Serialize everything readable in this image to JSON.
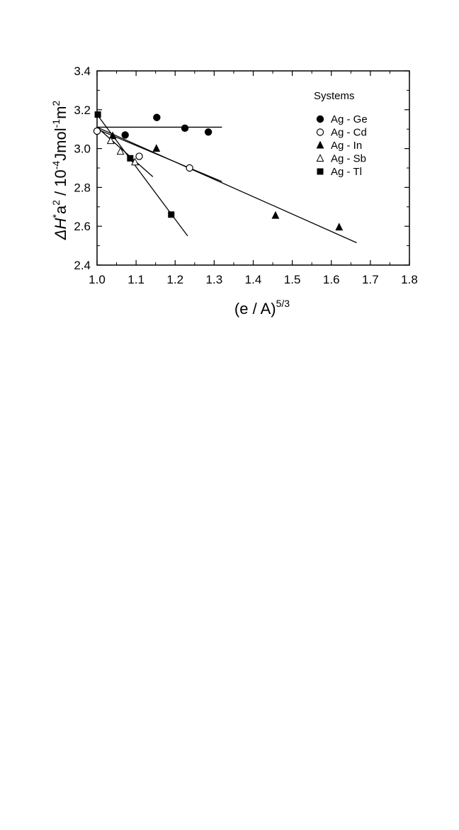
{
  "chart_data": {
    "type": "scatter",
    "title": "",
    "xlabel": "(e / A)",
    "xlabel_sup": "5/3",
    "ylabel_parts": {
      "delta": "Δ",
      "h": "H",
      "star": "*",
      "a": "a",
      "a_sup": "2",
      "sep": " / 10",
      "exp": "-4",
      "unit1": "Jmol",
      "unit1_sup": "-1",
      "unit2": "m",
      "unit2_sup": "2"
    },
    "xlim": [
      1.0,
      1.8
    ],
    "ylim": [
      2.4,
      3.4
    ],
    "x_ticks": [
      "1.0",
      "1.1",
      "1.2",
      "1.3",
      "1.4",
      "1.5",
      "1.6",
      "1.7",
      "1.8"
    ],
    "y_ticks": [
      "2.4",
      "2.6",
      "2.8",
      "3.0",
      "3.2",
      "3.4"
    ],
    "grid": false,
    "legend": {
      "title": "Systems",
      "position": "top-right"
    },
    "series": [
      {
        "name": "Ag - Ge",
        "marker": "filled-circle",
        "points": [
          [
            1.072,
            3.07
          ],
          [
            1.153,
            3.16
          ],
          [
            1.225,
            3.105
          ],
          [
            1.285,
            3.085
          ]
        ],
        "fit_line": [
          [
            1.0,
            3.11
          ],
          [
            1.32,
            3.11
          ]
        ]
      },
      {
        "name": "Ag - Cd",
        "marker": "open-circle",
        "points": [
          [
            1.0,
            3.09
          ],
          [
            1.108,
            2.96
          ],
          [
            1.237,
            2.9
          ]
        ],
        "fit_line": [
          [
            1.0,
            3.1
          ],
          [
            1.32,
            2.83
          ]
        ]
      },
      {
        "name": "Ag - In",
        "marker": "filled-triangle",
        "points": [
          [
            1.04,
            3.065
          ],
          [
            1.152,
            3.0
          ],
          [
            1.457,
            2.655
          ],
          [
            1.62,
            2.595
          ]
        ],
        "fit_line": [
          [
            1.0,
            3.11
          ],
          [
            1.665,
            2.515
          ]
        ]
      },
      {
        "name": "Ag - Sb",
        "marker": "open-triangle",
        "points": [
          [
            1.035,
            3.04
          ],
          [
            1.06,
            2.985
          ],
          [
            1.097,
            2.93
          ]
        ],
        "fit_line": [
          [
            1.0,
            3.11
          ],
          [
            1.143,
            2.855
          ]
        ]
      },
      {
        "name": "Ag - Tl",
        "marker": "filled-square",
        "points": [
          [
            1.002,
            3.175
          ],
          [
            1.085,
            2.95
          ],
          [
            1.19,
            2.66
          ]
        ],
        "fit_line": [
          [
            1.0,
            3.175
          ],
          [
            1.232,
            2.55
          ]
        ]
      }
    ]
  }
}
